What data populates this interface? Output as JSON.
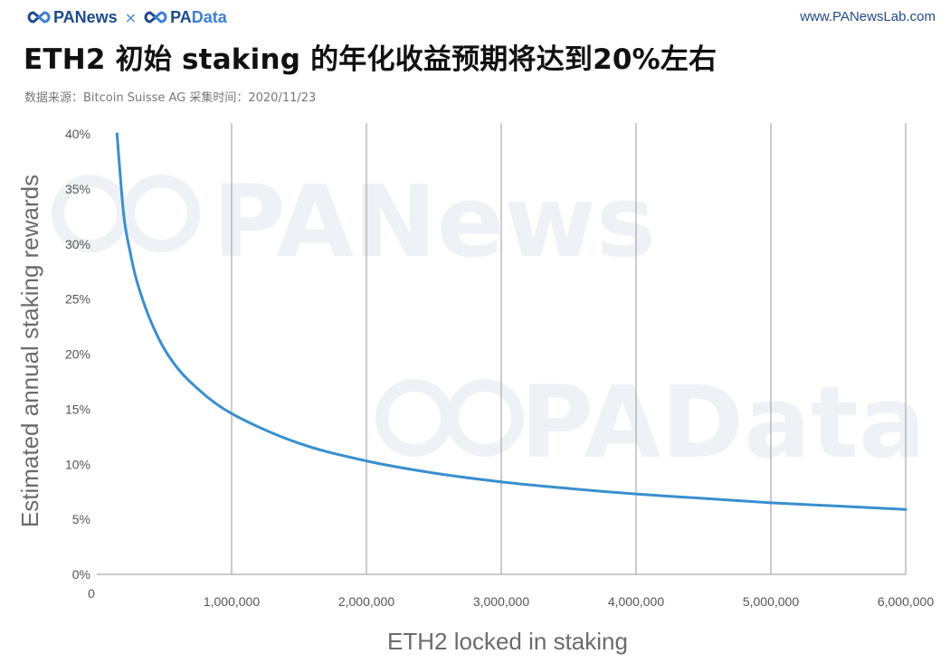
{
  "header": {
    "brand_left": "PANews",
    "brand_separator": "×",
    "brand_right_a": "PA",
    "brand_right_b": "Data",
    "site_url": "www.PANewsLab.com"
  },
  "title": "ETH2 初始 staking 的年化收益预期将达到20%左右",
  "source_line": "数据来源：Bitcoin Suisse AG  采集时间：2020/11/23",
  "watermarks": [
    "PANews",
    "PAData"
  ],
  "colors": {
    "line": "#3a8fce",
    "brand_dark": "#1f4a8a",
    "brand_light": "#3d7fd1",
    "grid": "#9a9a9a",
    "watermark": "#eef1f6"
  },
  "chart_data": {
    "type": "line",
    "title": "ETH2 初始 staking 的年化收益预期将达到20%左右",
    "xlabel": "ETH2 locked in staking",
    "ylabel": "Estimated annual staking rewards",
    "xlim": [
      0,
      6000000
    ],
    "ylim": [
      0,
      40
    ],
    "x_ticks": [
      0,
      1000000,
      2000000,
      3000000,
      4000000,
      5000000,
      6000000
    ],
    "x_tick_labels": [
      "0",
      "1,000,000",
      "2,000,000",
      "3,000,000",
      "4,000,000",
      "5,000,000",
      "6,000,000"
    ],
    "y_ticks": [
      0,
      5,
      10,
      15,
      20,
      25,
      30,
      35,
      40
    ],
    "y_tick_labels": [
      "0%",
      "5%",
      "10%",
      "15%",
      "20%",
      "25%",
      "30%",
      "35%",
      "40%"
    ],
    "grid": "vertical",
    "series": [
      {
        "x": [
          150000,
          200000,
          250000,
          300000,
          400000,
          524288,
          700000,
          1000000,
          1500000,
          2000000,
          2500000,
          3000000,
          3500000,
          4000000,
          4500000,
          5000000,
          5500000,
          6000000
        ],
        "values": [
          40.0,
          32.6,
          29.1,
          26.5,
          23.0,
          20.0,
          17.4,
          14.6,
          11.9,
          10.3,
          9.2,
          8.4,
          7.8,
          7.3,
          6.9,
          6.5,
          6.2,
          5.9
        ]
      }
    ]
  }
}
